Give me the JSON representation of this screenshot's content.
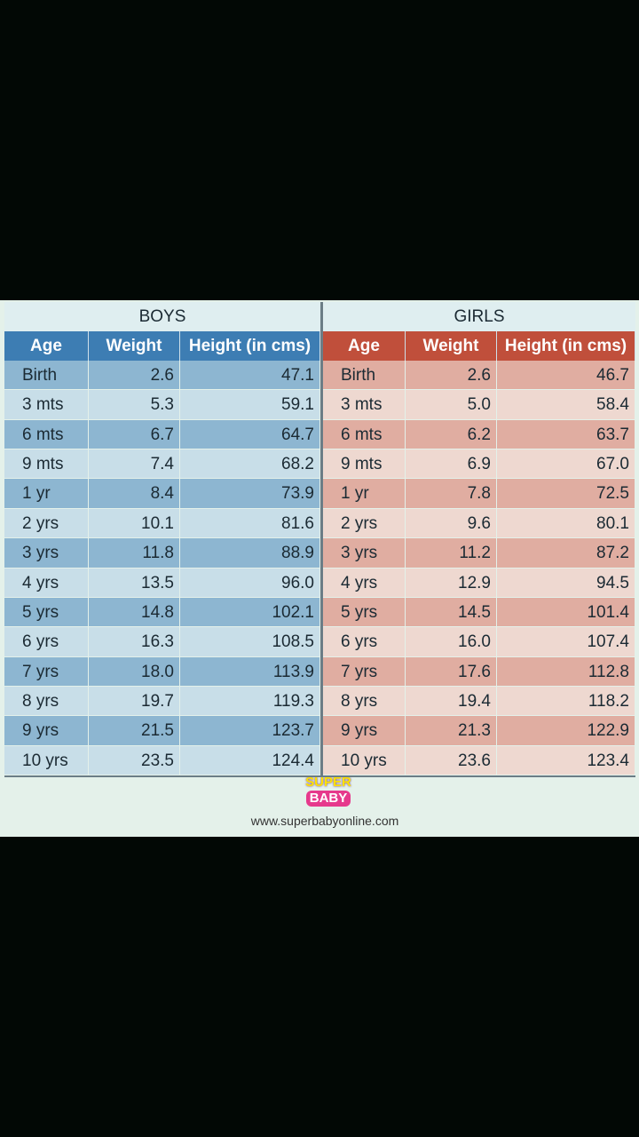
{
  "boys": {
    "title": "BOYS",
    "columns": [
      "Age",
      "Weight",
      "Height (in cms)"
    ],
    "rows": [
      [
        "Birth",
        "2.6",
        "47.1"
      ],
      [
        "3 mts",
        "5.3",
        "59.1"
      ],
      [
        "6 mts",
        "6.7",
        "64.7"
      ],
      [
        "9 mts",
        "7.4",
        "68.2"
      ],
      [
        "1 yr",
        "8.4",
        "73.9"
      ],
      [
        "2 yrs",
        "10.1",
        "81.6"
      ],
      [
        "3 yrs",
        "11.8",
        "88.9"
      ],
      [
        "4 yrs",
        "13.5",
        "96.0"
      ],
      [
        "5 yrs",
        "14.8",
        "102.1"
      ],
      [
        "6 yrs",
        "16.3",
        "108.5"
      ],
      [
        "7 yrs",
        "18.0",
        "113.9"
      ],
      [
        "8 yrs",
        "19.7",
        "119.3"
      ],
      [
        "9 yrs",
        "21.5",
        "123.7"
      ],
      [
        "10 yrs",
        "23.5",
        "124.4"
      ]
    ]
  },
  "girls": {
    "title": "GIRLS",
    "columns": [
      "Age",
      "Weight",
      "Height (in cms)"
    ],
    "rows": [
      [
        "Birth",
        "2.6",
        "46.7"
      ],
      [
        "3 mts",
        "5.0",
        "58.4"
      ],
      [
        "6 mts",
        "6.2",
        "63.7"
      ],
      [
        "9 mts",
        "6.9",
        "67.0"
      ],
      [
        "1 yr",
        "7.8",
        "72.5"
      ],
      [
        "2 yrs",
        "9.6",
        "80.1"
      ],
      [
        "3 yrs",
        "11.2",
        "87.2"
      ],
      [
        "4 yrs",
        "12.9",
        "94.5"
      ],
      [
        "5 yrs",
        "14.5",
        "101.4"
      ],
      [
        "6 yrs",
        "16.0",
        "107.4"
      ],
      [
        "7 yrs",
        "17.6",
        "112.8"
      ],
      [
        "8 yrs",
        "19.4",
        "118.2"
      ],
      [
        "9 yrs",
        "21.3",
        "122.9"
      ],
      [
        "10 yrs",
        "23.6",
        "123.4"
      ]
    ]
  },
  "logo": {
    "line1": "SUPER",
    "line2": "BABY"
  },
  "footer_url": "www.superbabyonline.com"
}
